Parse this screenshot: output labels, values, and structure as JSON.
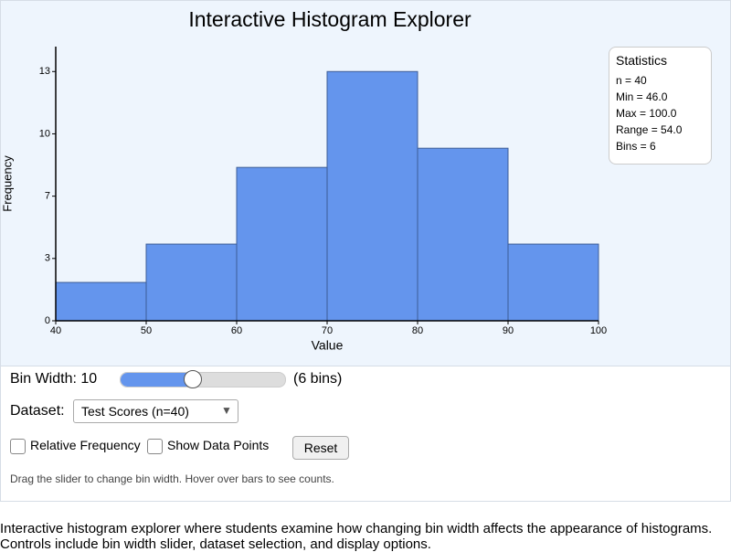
{
  "chart_data": {
    "type": "histogram",
    "title": "Interactive Histogram Explorer",
    "x_label": "Value",
    "y_label": "Frequency",
    "bins": [
      40,
      50,
      60,
      70,
      80,
      90,
      100
    ],
    "counts": [
      2,
      4,
      8,
      13,
      9,
      4
    ],
    "color": "#6495ed",
    "edge_color": "#3d5d96",
    "xlim": [
      40,
      100
    ],
    "xticks": [
      40,
      50,
      60,
      70,
      80,
      90,
      100
    ],
    "ylim": [
      0,
      14.3
    ],
    "yticks": [
      0,
      {
        "value": 3.25,
        "label": "3"
      },
      {
        "value": 6.5,
        "label": "7"
      },
      {
        "value": 9.75,
        "label": "10"
      },
      13
    ]
  },
  "stats": {
    "title": "Statistics",
    "lines": [
      "n = 40",
      "Min = 46.0",
      "Max = 100.0",
      "Range = 54.0",
      "Bins = 6"
    ]
  },
  "controls": {
    "bin_width": "Bin Width: 10",
    "bin_count": "(6 bins)",
    "dataset_label": "Dataset:",
    "dataset_selected": "Test Scores (n=40)",
    "relative_frequency": "Relative Frequency",
    "show_points": "Show Data Points",
    "reset": "Reset",
    "hint": "Drag the slider to change bin width. Hover over bars to see counts."
  },
  "description": "Interactive histogram explorer where students examine how changing bin width affects the appearance of histograms. Controls include bin width slider, dataset selection, and display options."
}
